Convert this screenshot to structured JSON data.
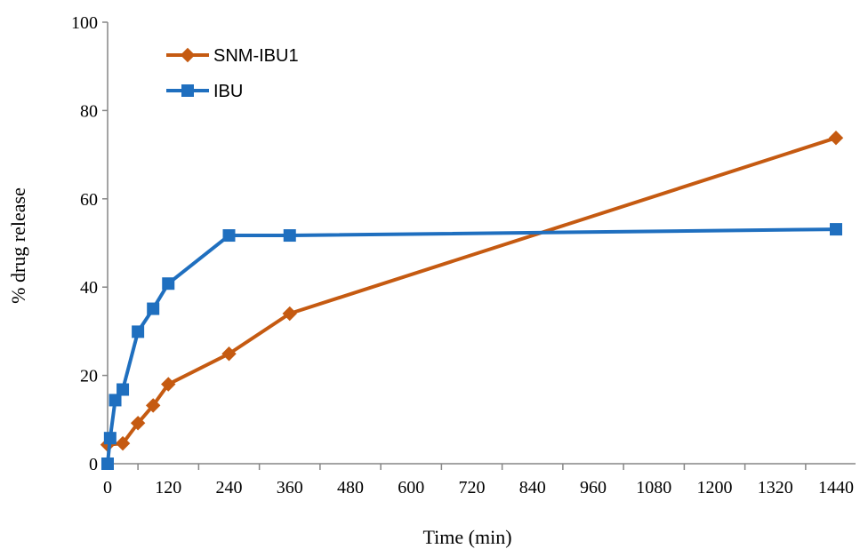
{
  "chart_data": {
    "type": "line",
    "title": "",
    "xlabel": "Time (min)",
    "ylabel": "%  drug release",
    "xlim": [
      0,
      1440
    ],
    "ylim": [
      0,
      100
    ],
    "x_ticks": [
      0,
      120,
      240,
      360,
      480,
      600,
      720,
      840,
      960,
      1080,
      1200,
      1320,
      1440
    ],
    "y_ticks": [
      0,
      20,
      40,
      60,
      80,
      100
    ],
    "grid": false,
    "legend_position": "top-left",
    "series": [
      {
        "name": "SNM-IBU1",
        "color": "#c55a11",
        "marker": "diamond",
        "x": [
          0,
          30,
          60,
          90,
          120,
          240,
          360,
          1440
        ],
        "y": [
          4.3,
          4.6,
          9.2,
          13.2,
          18.0,
          24.9,
          34.0,
          73.8
        ]
      },
      {
        "name": "IBU",
        "color": "#1f6fbf",
        "marker": "square",
        "x": [
          0,
          5,
          15,
          30,
          60,
          90,
          120,
          240,
          360,
          1440
        ],
        "y": [
          0,
          5.8,
          14.4,
          16.8,
          29.9,
          35.1,
          40.8,
          51.7,
          51.7,
          53.1
        ]
      }
    ]
  }
}
